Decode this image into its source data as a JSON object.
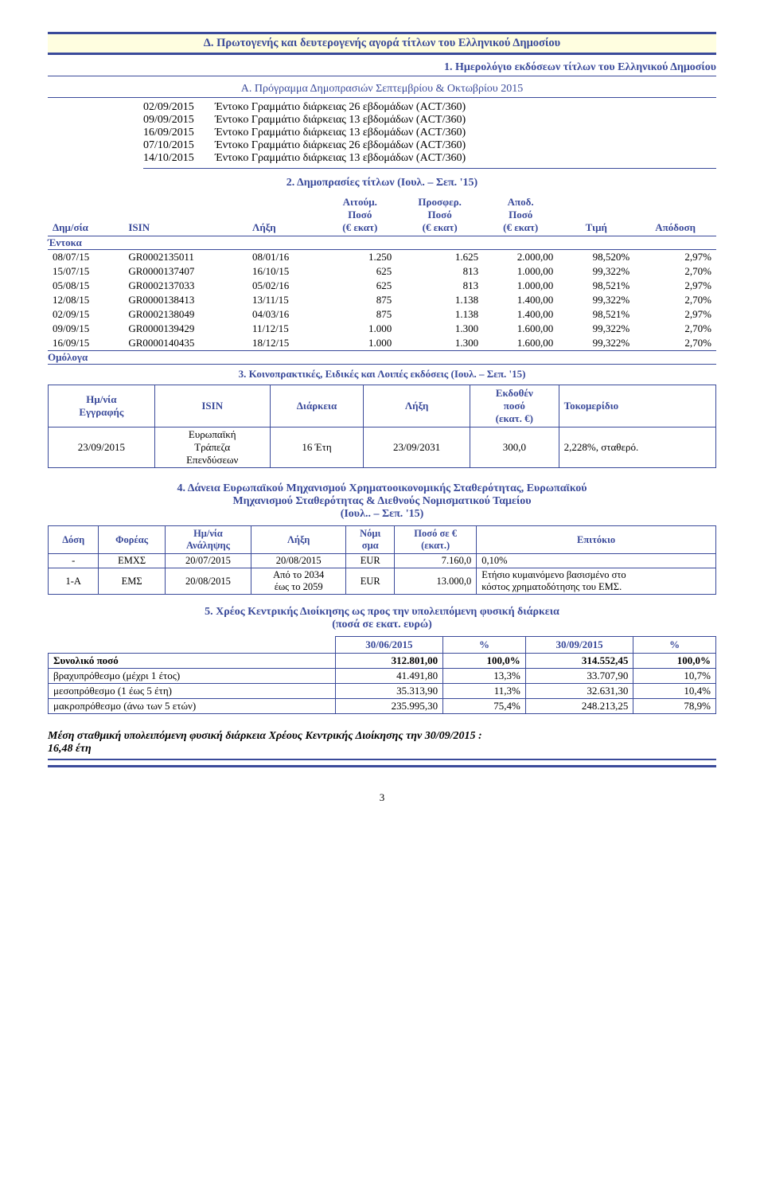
{
  "main_header": "Δ. Πρωτογενής και δευτερογενής αγορά τίτλων του Ελληνικού Δημοσίου",
  "subtitle1": "1.    Ημερολόγιο εκδόσεων τίτλων του Ελληνικού Δημοσίου",
  "program_title": "Α. Πρόγραμμα Δημοπρασιών Σεπτεμβρίου & Οκτωβρίου 2015",
  "schedule": [
    {
      "date": "02/09/2015",
      "desc": "Έντοκο Γραμμάτιο διάρκειας 26 εβδομάδων (ACT/360)"
    },
    {
      "date": "09/09/2015",
      "desc": "Έντοκο Γραμμάτιο διάρκειας 13 εβδομάδων (ACT/360)"
    },
    {
      "date": "16/09/2015",
      "desc": "Έντοκο Γραμμάτιο διάρκειας 13 εβδομάδων (ACT/360)"
    },
    {
      "date": "07/10/2015",
      "desc": "Έντοκο Γραμμάτιο διάρκειας 26 εβδομάδων (ACT/360)"
    },
    {
      "date": "14/10/2015",
      "desc": "Έντοκο Γραμμάτιο διάρκειας 13 εβδομάδων (ACT/360)"
    }
  ],
  "auctions_title": "2. Δημοπρασίες τίτλων (Ιουλ. – Σεπ. '15)",
  "auction_cols": {
    "c1": "Δημ/σία",
    "c2": "ISIN",
    "c3": "Λήξη",
    "c4a": "Αιτούμ.",
    "c4b": "Ποσό",
    "c4c": "(€ εκατ)",
    "c5a": "Προσφερ.",
    "c5b": "Ποσό",
    "c5c": "(€ εκατ)",
    "c6a": "Αποδ.",
    "c6b": "Ποσό",
    "c6c": "(€ εκατ)",
    "c7": "Τιμή",
    "c8": "Απόδοση"
  },
  "entoka_label": "Έντοκα",
  "omologa_label": "Ομόλογα",
  "auction_rows": [
    {
      "d": "08/07/15",
      "isin": "GR0002135011",
      "m": "08/01/16",
      "req": "1.250",
      "off": "1.625",
      "acc": "2.000,00",
      "price": "98,520%",
      "yld": "2,97%"
    },
    {
      "d": "15/07/15",
      "isin": "GR0000137407",
      "m": "16/10/15",
      "req": "625",
      "off": "813",
      "acc": "1.000,00",
      "price": "99,322%",
      "yld": "2,70%"
    },
    {
      "d": "05/08/15",
      "isin": "GR0002137033",
      "m": "05/02/16",
      "req": "625",
      "off": "813",
      "acc": "1.000,00",
      "price": "98,521%",
      "yld": "2,97%"
    },
    {
      "d": "12/08/15",
      "isin": "GR0000138413",
      "m": "13/11/15",
      "req": "875",
      "off": "1.138",
      "acc": "1.400,00",
      "price": "99,322%",
      "yld": "2,70%"
    },
    {
      "d": "02/09/15",
      "isin": "GR0002138049",
      "m": "04/03/16",
      "req": "875",
      "off": "1.138",
      "acc": "1.400,00",
      "price": "98,521%",
      "yld": "2,97%"
    },
    {
      "d": "09/09/15",
      "isin": "GR0000139429",
      "m": "11/12/15",
      "req": "1.000",
      "off": "1.300",
      "acc": "1.600,00",
      "price": "99,322%",
      "yld": "2,70%"
    },
    {
      "d": "16/09/15",
      "isin": "GR0000140435",
      "m": "18/12/15",
      "req": "1.000",
      "off": "1.300",
      "acc": "1.600,00",
      "price": "99,322%",
      "yld": "2,70%"
    }
  ],
  "koino_title": "3. Κοινοπρακτικές, Ειδικές και Λοιπές εκδόσεις (Ιουλ. – Σεπ. '15)",
  "koino_cols": {
    "c1a": "Ημ/νία",
    "c1b": "Εγγραφής",
    "c2": "ISIN",
    "c3": "Διάρκεια",
    "c4": "Λήξη",
    "c5a": "Εκδοθέν",
    "c5b": "ποσό",
    "c5c": "(εκατ. €)",
    "c6": "Τοκομερίδιο"
  },
  "koino_row": {
    "d": "23/09/2015",
    "isin1": "Ευρωπαϊκή",
    "isin2": "Τράπεζα",
    "isin3": "Επενδύσεων",
    "dur": "16 Έτη",
    "m": "23/09/2031",
    "amt": "300,0",
    "coupon": "2,228%, σταθερό."
  },
  "loans_title1": "4. Δάνεια Ευρωπαϊκού Μηχανισμού Χρηματοοικονομικής Σταθερότητας, Ευρωπαϊκού",
  "loans_title2": "Μηχανισμού Σταθερότητας & Διεθνούς Νομισματικού Ταμείου",
  "loans_title3": "(Ιουλ.. – Σεπ. '15)",
  "loan_cols": {
    "c1": "Δόση",
    "c2": "Φορέας",
    "c3a": "Ημ/νία",
    "c3b": "Ανάληψης",
    "c4": "Λήξη",
    "c5a": "Νόμι",
    "c5b": "σμα",
    "c6a": "Ποσό σε €",
    "c6b": "(εκατ.)",
    "c7": "Επιτόκιο"
  },
  "loan_rows": [
    {
      "dose": "-",
      "org": "ΕΜΧΣ",
      "dd": "20/07/2015",
      "m": "20/08/2015",
      "cur": "EUR",
      "amt": "7.160,0",
      "rate": "0,10%"
    },
    {
      "dose": "1-A",
      "org": "ΕΜΣ",
      "dd": "20/08/2015",
      "m1": "Από το 2034",
      "m2": "έως το 2059",
      "cur": "EUR",
      "amt": "13.000,0",
      "rate1": "Ετήσιο κυμαινόμενο βασισμένο στο",
      "rate2": "κόστος χρηματοδότησης του ΕΜΣ."
    }
  ],
  "debt_title1": "5.    Χρέος Κεντρικής Διοίκησης ως προς την υπολειπόμενη φυσική διάρκεια",
  "debt_title2": "(ποσά σε εκατ. ευρώ)",
  "debt_cols": {
    "c2": "30/06/2015",
    "c3": "%",
    "c4": "30/09/2015",
    "c5": "%"
  },
  "debt_rows": [
    {
      "l": "Συνολικό ποσό",
      "a": "312.801,00",
      "ap": "100,0%",
      "b": "314.552,45",
      "bp": "100,0%",
      "bold": true
    },
    {
      "l": "   βραχυπρόθεσμο (μέχρι 1 έτος)",
      "a": "41.491,80",
      "ap": "13,3%",
      "b": "33.707,90",
      "bp": "10,7%"
    },
    {
      "l": "   μεσοπρόθεσμο (1 έως 5 έτη)",
      "a": "35.313,90",
      "ap": "11,3%",
      "b": "32.631,30",
      "bp": "10,4%"
    },
    {
      "l": "   μακροπρόθεσμο (άνω των 5 ετών)",
      "a": "235.995,30",
      "ap": "75,4%",
      "b": "248.213,25",
      "bp": "78,9%"
    }
  ],
  "avg_text1": "Μέση σταθμική υπολειπόμενη φυσική διάρκεια Χρέους Κεντρικής Διοίκησης  την 30/09/2015 :",
  "avg_text2": "16,48 έτη",
  "page_num": "3",
  "colors": {
    "blue": "#3a4a9a",
    "yellow_bg": "#fffee0"
  }
}
